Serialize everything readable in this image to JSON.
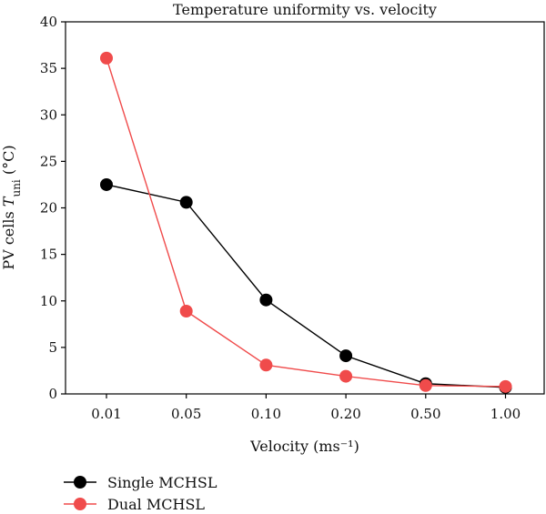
{
  "chart_data": {
    "type": "line",
    "title": "Temperature uniformity vs. velocity",
    "xlabel": "Velocity (ms⁻¹)",
    "ylabel_prefix": "PV cells ",
    "ylabel_var": "T",
    "ylabel_sub": "uni",
    "ylabel_suffix": " (°C)",
    "categories": [
      "0.01",
      "0.05",
      "0.10",
      "0.20",
      "0.50",
      "1.00"
    ],
    "ylim": [
      0,
      40
    ],
    "yticks": [
      "0",
      "5",
      "10",
      "15",
      "20",
      "25",
      "30",
      "35",
      "40"
    ],
    "grid": false,
    "legend_position": "bottom-left-outside",
    "series": [
      {
        "name": "Single MCHSL",
        "color": "#000000",
        "values": [
          22.5,
          20.6,
          10.1,
          4.1,
          1.1,
          0.7
        ]
      },
      {
        "name": "Dual MCHSL",
        "color": "#f04b4b",
        "values": [
          36.1,
          8.9,
          3.1,
          1.9,
          0.9,
          0.8
        ]
      }
    ]
  }
}
